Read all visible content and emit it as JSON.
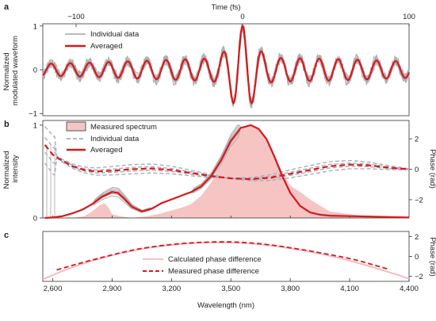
{
  "colors": {
    "red": "#d7191c",
    "gray": "#b0b0b0",
    "dash_gray": "#a9adbd",
    "fill_pink": "#f7c4c4",
    "axis": "#333333",
    "calc_pink": "#f4b6bd"
  },
  "chart_data": [
    {
      "panel": "a",
      "type": "line",
      "xlabel": "Time (fs)",
      "ylabel": "Normalized modulated waveform",
      "ylabel_lines": [
        "Normalized",
        "modulated waveform"
      ],
      "xlim": [
        -120,
        100
      ],
      "ylim": [
        -1.05,
        1.05
      ],
      "xticks": [
        -100,
        0,
        100
      ],
      "xtick_labels": [
        "−100",
        "0",
        "100"
      ],
      "yticks": [
        1,
        0,
        -1
      ],
      "ytick_labels": [
        "1",
        "0",
        "−1"
      ],
      "legend": [
        "Individual data",
        "Averaged"
      ],
      "series": [
        {
          "name": "Individual data",
          "role": "individual"
        },
        {
          "name": "Averaged",
          "role": "averaged",
          "model": {
            "carrier_period_fs": 11.5,
            "envelope_fwhm_fs": 15,
            "background_amplitude": 0.27,
            "peak": 1.0
          }
        }
      ]
    },
    {
      "panel": "b",
      "type": "line",
      "ylabel": "Normalized intensity",
      "ylabel_lines": [
        "Normalized",
        "intensity"
      ],
      "y2label": "Phase (rad)",
      "xlim": [
        2550,
        4400
      ],
      "ylim": [
        0,
        1.05
      ],
      "y2lim": [
        -3.2,
        3.2
      ],
      "yticks": [
        0,
        1
      ],
      "ytick_labels": [
        "0",
        "1"
      ],
      "y2ticks": [
        2,
        0,
        -2
      ],
      "y2tick_labels": [
        "2",
        "0",
        "−2"
      ],
      "legend": [
        "Measured spectrum",
        "Individual data",
        "Averaged"
      ],
      "series": [
        {
          "name": "Measured spectrum",
          "type": "area",
          "x": [
            2550,
            2600,
            2640,
            2700,
            2760,
            2800,
            2840,
            2860,
            2880,
            2900,
            2940,
            3000,
            3080,
            3150,
            3200,
            3250,
            3300,
            3350,
            3400,
            3440,
            3480,
            3520,
            3560,
            3600,
            3640,
            3680,
            3720,
            3760,
            3800,
            3850,
            3900,
            3960,
            4000,
            4100,
            4200,
            4300,
            4400
          ],
          "y": [
            0.0,
            0.0,
            0.0,
            0.0,
            0.02,
            0.07,
            0.14,
            0.16,
            0.12,
            0.04,
            0.02,
            0.0,
            0.02,
            0.05,
            0.08,
            0.11,
            0.15,
            0.24,
            0.38,
            0.55,
            0.73,
            0.88,
            0.97,
            1.0,
            0.96,
            0.85,
            0.68,
            0.49,
            0.35,
            0.28,
            0.2,
            0.12,
            0.07,
            0.04,
            0.02,
            0.01,
            0.0
          ]
        },
        {
          "name": "Averaged",
          "role": "intensity",
          "x": [
            2560,
            2600,
            2650,
            2700,
            2750,
            2800,
            2850,
            2900,
            2930,
            2960,
            3000,
            3050,
            3100,
            3150,
            3200,
            3250,
            3300,
            3350,
            3400,
            3450,
            3500,
            3550,
            3600,
            3640,
            3680,
            3720,
            3760,
            3800,
            3850,
            3900,
            3950,
            4000,
            4100,
            4200,
            4300,
            4400
          ],
          "y": [
            0.0,
            0.005,
            0.02,
            0.05,
            0.09,
            0.15,
            0.23,
            0.28,
            0.27,
            0.21,
            0.12,
            0.07,
            0.1,
            0.16,
            0.2,
            0.24,
            0.28,
            0.34,
            0.45,
            0.62,
            0.83,
            0.97,
            1.0,
            0.96,
            0.85,
            0.66,
            0.45,
            0.27,
            0.13,
            0.06,
            0.035,
            0.025,
            0.02,
            0.015,
            0.01,
            0.005
          ]
        },
        {
          "name": "Averaged",
          "role": "phase",
          "axis": "y2",
          "x": [
            2560,
            2580,
            2600,
            2650,
            2700,
            2760,
            2820,
            2900,
            3000,
            3100,
            3200,
            3300,
            3400,
            3500,
            3600,
            3700,
            3800,
            3900,
            4000,
            4100,
            4200,
            4300,
            4400
          ],
          "y": [
            1.6,
            1.3,
            0.95,
            0.55,
            0.2,
            -0.05,
            -0.15,
            -0.1,
            0.0,
            0.05,
            -0.05,
            -0.25,
            -0.45,
            -0.6,
            -0.65,
            -0.55,
            -0.3,
            -0.05,
            0.2,
            0.3,
            0.25,
            0.1,
            0.0
          ]
        }
      ]
    },
    {
      "panel": "c",
      "type": "line",
      "xlabel": "Wavelength (nm)",
      "y2label": "Phase (rad)",
      "xlim": [
        2550,
        4400
      ],
      "y2lim": [
        -2.5,
        2.5
      ],
      "xticks": [
        2600,
        2900,
        3200,
        3500,
        3800,
        4100,
        4400
      ],
      "xtick_labels": [
        "2,600",
        "2,900",
        "3,200",
        "3,500",
        "3,800",
        "4,100",
        "4,400"
      ],
      "y2ticks": [
        2,
        0,
        -2
      ],
      "y2tick_labels": [
        "2",
        "0",
        "−2"
      ],
      "legend": [
        "Calculated phase difference",
        "Measured phase difference"
      ],
      "series": [
        {
          "name": "Calculated phase difference",
          "x": [
            2550,
            2650,
            2750,
            2850,
            2950,
            3050,
            3150,
            3250,
            3350,
            3450,
            3550,
            3650,
            3750,
            3850,
            3950,
            4050,
            4150,
            4250,
            4350,
            4400
          ],
          "y": [
            -2.3,
            -1.45,
            -0.75,
            -0.15,
            0.35,
            0.75,
            1.05,
            1.25,
            1.38,
            1.4,
            1.35,
            1.2,
            0.97,
            0.65,
            0.27,
            -0.18,
            -0.7,
            -1.28,
            -1.9,
            -2.25
          ]
        },
        {
          "name": "Measured phase difference",
          "x": [
            2620,
            2700,
            2780,
            2860,
            2940,
            3020,
            3100,
            3180,
            3260,
            3340,
            3420,
            3500,
            3580,
            3660,
            3740,
            3820,
            3900,
            3980,
            4060,
            4140,
            4220,
            4300
          ],
          "y": [
            -1.35,
            -0.9,
            -0.45,
            -0.05,
            0.35,
            0.7,
            0.95,
            1.15,
            1.3,
            1.4,
            1.45,
            1.45,
            1.38,
            1.25,
            1.05,
            0.8,
            0.55,
            0.25,
            -0.05,
            -0.4,
            -0.85,
            -1.3
          ]
        }
      ]
    }
  ]
}
